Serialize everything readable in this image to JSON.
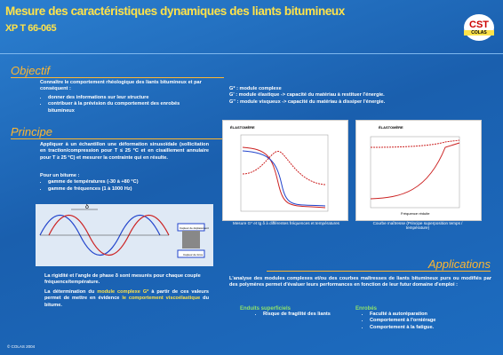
{
  "header": {
    "title": "Mesure des caractéristiques dynamiques des liants bitumineux",
    "subtitle": "XP T 66-065",
    "logo": "CST",
    "logo_sub": "COLAS"
  },
  "objectif": {
    "heading": "Objectif",
    "intro": "Connaître le comportement rhéologique des liants bitumineux et par conséquent :",
    "bullets": [
      "donner des informations sur leur structure",
      "contribuer à la prévision du comportement des enrobés bitumineux"
    ]
  },
  "principe": {
    "heading": "Principe",
    "text": "Appliquer à un échantillon une déformation sinusoïdale (sollicitation en traction/compression pour T ≤ 25 °C et en cisaillement annulaire pour T ≥ 25 °C) et mesurer la contrainte qui en résulte.",
    "bitume_intro": "Pour un bitume :",
    "bullets": [
      "gamme de températures (-30 à +80 °C)",
      "gamme de fréquences (1 à 1000 Hz)"
    ],
    "diagram": {
      "delta": "δ",
      "sensor_top": "Capteur de déplacement",
      "sensor_bottom": "Capteur de force"
    },
    "measure": "La rigidité et l'angle de phase δ sont mesurés pour chaque couple fréquence/température.",
    "conclusion": [
      "La détermination du ",
      "module complexe G*",
      " à partir de ces valeurs permet de mettre en évidence ",
      "le comportement viscoélastique",
      " du bitume."
    ]
  },
  "modules": [
    "G* : module complexe",
    "G' : module élastique -> capacité du matériau à restituer l'énergie.",
    "G'' : module visqueux -> capacité du matériau à dissiper l'énergie."
  ],
  "figures": [
    {
      "label": "ÉLASTOMÈRE",
      "caption": "Mesure G* et tg δ à différentes fréquences et températures"
    },
    {
      "label": "ÉLASTOMÈRE",
      "axis": "Fréquence réduite",
      "caption": "Courbe maîtresse (Principe superposition temps / température)"
    }
  ],
  "applications": {
    "heading": "Applications",
    "text": "L'analyse des modules complexes et/ou des courbes maîtresses de liants bitumineux purs ou modifiés par des polymères permet d'évaluer leurs performances en fonction de leur futur domaine d'emploi :",
    "groups": [
      {
        "title": "Enduits superficiels",
        "items": [
          "Risque de fragilité des liants"
        ]
      },
      {
        "title": "Enrobés",
        "items": [
          "Faculté à autoréparation",
          "Comportement à l'orniérage",
          "Comportement à la fatigue."
        ]
      }
    ]
  },
  "footer": "© COLAS 2004"
}
